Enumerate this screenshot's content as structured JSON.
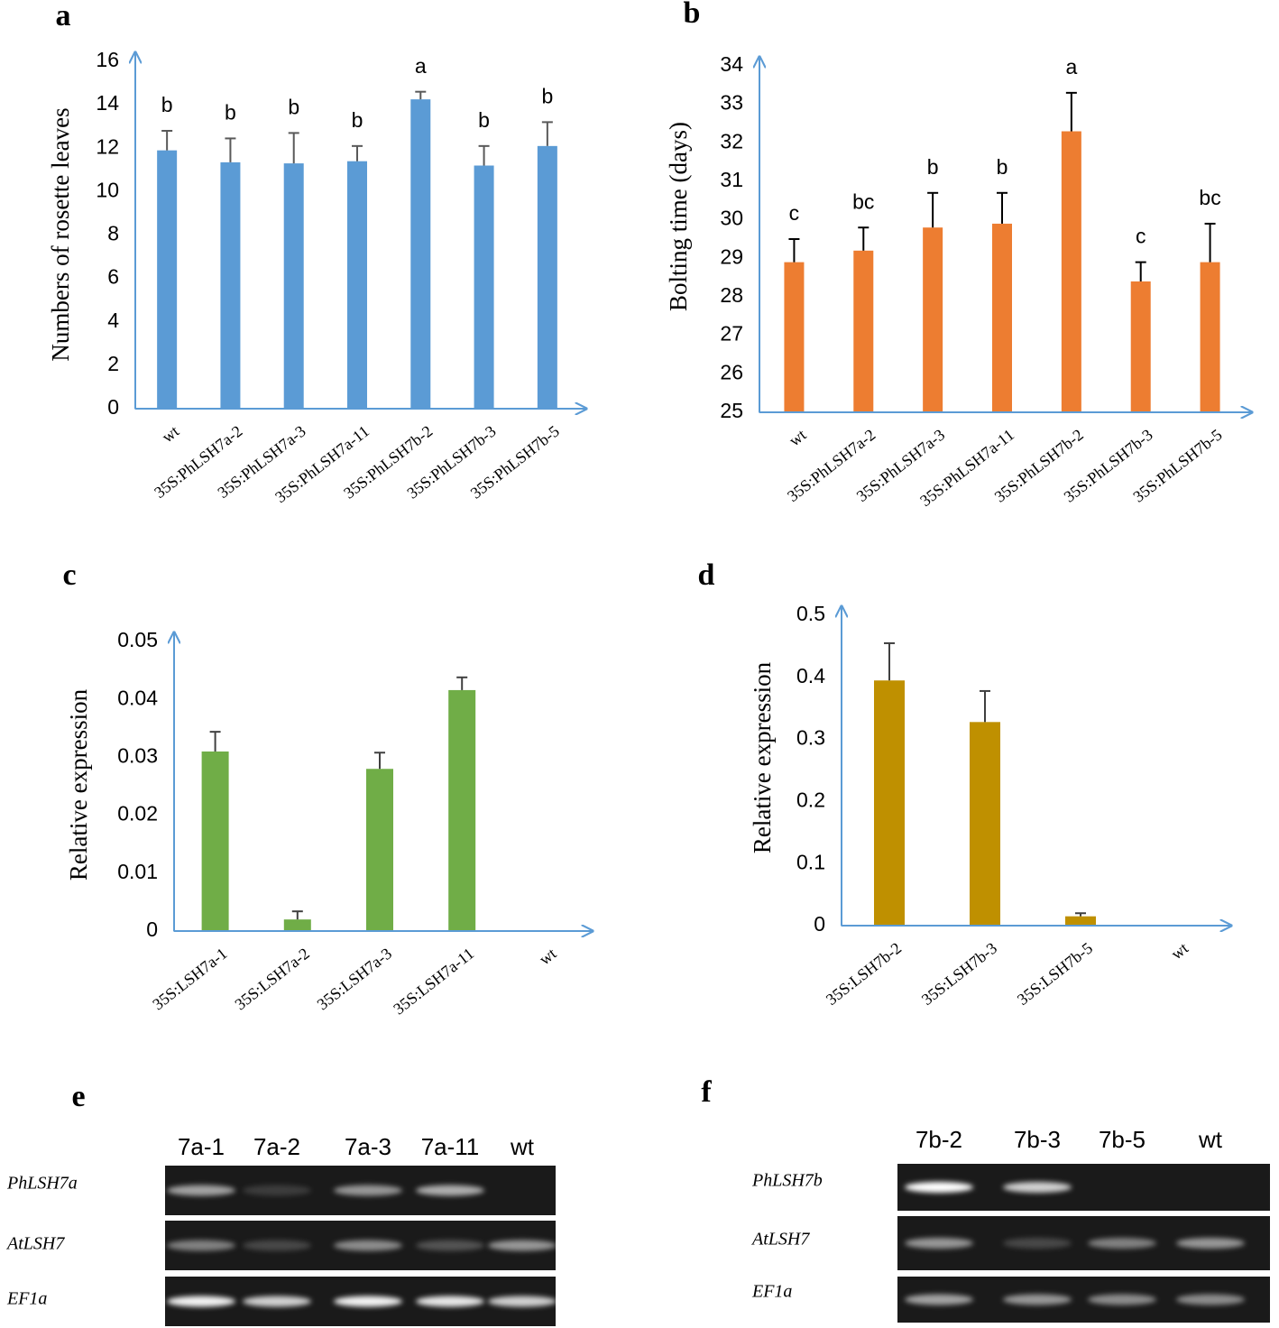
{
  "chart_data": [
    {
      "type": "bar",
      "panel_label": "a",
      "ylabel": "Numbers of rosette leaves",
      "color": "#5b9bd5",
      "error_color": "#595959",
      "categories": [
        "wt",
        "35S:PhLSH7a-2",
        "35S:PhLSH7a-3",
        "35S:PhLSH7a-11",
        "35S:PhLSH7b-2",
        "35S:PhLSH7b-3",
        "35S:PhLSH7b-5"
      ],
      "values": [
        11.9,
        11.35,
        11.3,
        11.4,
        14.25,
        11.2,
        12.1
      ],
      "errors": [
        0.9,
        1.1,
        1.4,
        0.7,
        0.35,
        0.9,
        1.1
      ],
      "annotations": [
        "b",
        "b",
        "b",
        "b",
        "a",
        "b",
        "b"
      ],
      "ylim": [
        0,
        16
      ],
      "yticks": [
        0,
        2,
        4,
        6,
        8,
        10,
        12,
        14,
        16
      ]
    },
    {
      "type": "bar",
      "panel_label": "b",
      "ylabel": "Bolting time (days)",
      "color": "#ed7d31",
      "error_color": "#000000",
      "categories": [
        "wt",
        "35S:PhLSH7a-2",
        "35S:PhLSH7a-3",
        "35S:PhLSH7a-11",
        "35S:PhLSH7b-2",
        "35S:PhLSH7b-3",
        "35S:PhLSH7b-5"
      ],
      "values": [
        28.9,
        29.2,
        29.8,
        29.9,
        32.3,
        28.4,
        28.9
      ],
      "errors": [
        0.6,
        0.6,
        0.9,
        0.8,
        1.0,
        0.5,
        1.0
      ],
      "annotations": [
        "c",
        "bc",
        "b",
        "b",
        "a",
        "c",
        "bc"
      ],
      "ylim": [
        25,
        34
      ],
      "yticks": [
        25,
        26,
        27,
        28,
        29,
        30,
        31,
        32,
        33,
        34
      ]
    },
    {
      "type": "bar",
      "panel_label": "c",
      "ylabel": "Relative expression",
      "color": "#70ad47",
      "error_color": "#404040",
      "categories": [
        "35S:LSH7a-1",
        "35S:LSH7a-2",
        "35S:LSH7a-3",
        "35S:LSH7a-11",
        "wt"
      ],
      "values": [
        0.031,
        0.002,
        0.028,
        0.0416,
        0
      ],
      "errors": [
        0.0034,
        0.0014,
        0.0028,
        0.0022,
        0
      ],
      "ylim": [
        0,
        0.05
      ],
      "yticks": [
        0,
        0.01,
        0.02,
        0.03,
        0.04,
        0.05
      ]
    },
    {
      "type": "bar",
      "panel_label": "d",
      "ylabel": "Relative expression",
      "color": "#bf9000",
      "error_color": "#404040",
      "categories": [
        "35S:LSH7b-2",
        "35S:LSH7b-3",
        "35S:LSH7b-5",
        "wt"
      ],
      "values": [
        0.395,
        0.328,
        0.015,
        0
      ],
      "errors": [
        0.06,
        0.05,
        0.005,
        0
      ],
      "ylim": [
        0,
        0.5
      ],
      "yticks": [
        0,
        0.1,
        0.2,
        0.3,
        0.4,
        0.5
      ]
    }
  ],
  "gels": [
    {
      "panel_label": "e",
      "lanes": [
        "7a-1",
        "7a-2",
        "7a-3",
        "7a-11",
        "wt"
      ],
      "genes": [
        "PhLSH7a",
        "AtLSH7",
        "EF1a"
      ]
    },
    {
      "panel_label": "f",
      "lanes": [
        "7b-2",
        "7b-3",
        "7b-5",
        "wt"
      ],
      "genes": [
        "PhLSH7b",
        "AtLSH7",
        "EF1a"
      ]
    }
  ]
}
